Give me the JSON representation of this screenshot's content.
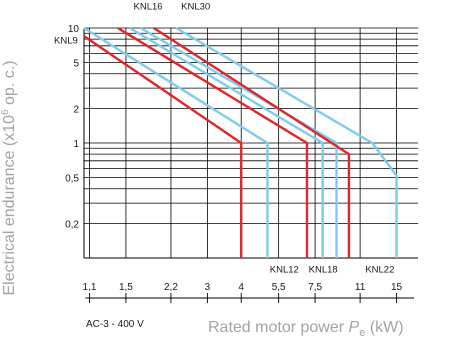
{
  "chart_data": {
    "type": "line",
    "x_scale": "log",
    "y_scale": "log",
    "grid": true,
    "xlim": [
      1.05,
      18
    ],
    "ylim": [
      0.1,
      10
    ],
    "x_ticks": [
      {
        "value": 1.1,
        "label": "1,1"
      },
      {
        "value": 1.5,
        "label": "1,5"
      },
      {
        "value": 2.2,
        "label": "2,2"
      },
      {
        "value": 3,
        "label": "3"
      },
      {
        "value": 4,
        "label": "4"
      },
      {
        "value": 5.5,
        "label": "5,5"
      },
      {
        "value": 7.5,
        "label": "7,5"
      },
      {
        "value": 11,
        "label": "11"
      },
      {
        "value": 15,
        "label": "15"
      }
    ],
    "y_ticks": [
      {
        "value": 0.2,
        "label": "0,2"
      },
      {
        "value": 0.5,
        "label": "0,5"
      },
      {
        "value": 1,
        "label": "1"
      },
      {
        "value": 2,
        "label": "2"
      },
      {
        "value": 5,
        "label": "5"
      },
      {
        "value": 10,
        "label": "10"
      }
    ],
    "ylabel_main": "Electrical endurance (x10",
    "ylabel_exp": "6",
    "ylabel_tail": " op. c.)",
    "xlabel_main": "Rated motor power ",
    "xlabel_symbol": "P",
    "xlabel_sub": "e",
    "xlabel_unit": " (kW)",
    "note": "AC-3 - 400 V",
    "series": [
      {
        "name": "KNL9",
        "color": "#e0262b",
        "points": [
          [
            1.05,
            8.5
          ],
          [
            4,
            1
          ],
          [
            4,
            0.1
          ]
        ]
      },
      {
        "name": "KNL12",
        "color": "#7fcbee",
        "points": [
          [
            1.05,
            10
          ],
          [
            5,
            1
          ],
          [
            5,
            0.1
          ]
        ]
      },
      {
        "name": "KNL16",
        "color": "#e0262b",
        "points": [
          [
            1.4,
            10
          ],
          [
            7,
            1
          ],
          [
            7,
            0.1
          ]
        ]
      },
      {
        "name": "KNL18",
        "color": "#7fcbee",
        "points": [
          [
            1.55,
            10
          ],
          [
            8,
            1
          ],
          [
            8,
            0.1
          ]
        ]
      },
      {
        "name": "KNL30",
        "color": "#7fcbee",
        "points": [
          [
            2.3,
            10
          ],
          [
            12.2,
            1
          ],
          [
            15,
            0.52
          ],
          [
            15,
            0.1
          ]
        ]
      },
      {
        "name": "KNL22",
        "color": "#7fcbee",
        "points": [
          [
            1.7,
            10
          ],
          [
            9,
            1
          ],
          [
            9,
            0.1
          ]
        ]
      },
      {
        "name": "KNL30-red",
        "color": "#e0262b",
        "points": [
          [
            1.9,
            10
          ],
          [
            10,
            0.8
          ],
          [
            10,
            0.1
          ]
        ]
      }
    ],
    "series_labels": [
      {
        "text": "KNL16",
        "xv": 1.6,
        "yv": 14.5
      },
      {
        "text": "KNL30",
        "xv": 2.4,
        "yv": 14.5
      },
      {
        "text": "KNL9",
        "xv": 1.02,
        "yv": 7.3
      },
      {
        "text": "KNL12",
        "xv": 5.1,
        "yv": 0.075
      },
      {
        "text": "KNL18",
        "xv": 7.1,
        "yv": 0.075
      },
      {
        "text": "KNL22",
        "xv": 11.5,
        "yv": 0.075
      }
    ]
  }
}
